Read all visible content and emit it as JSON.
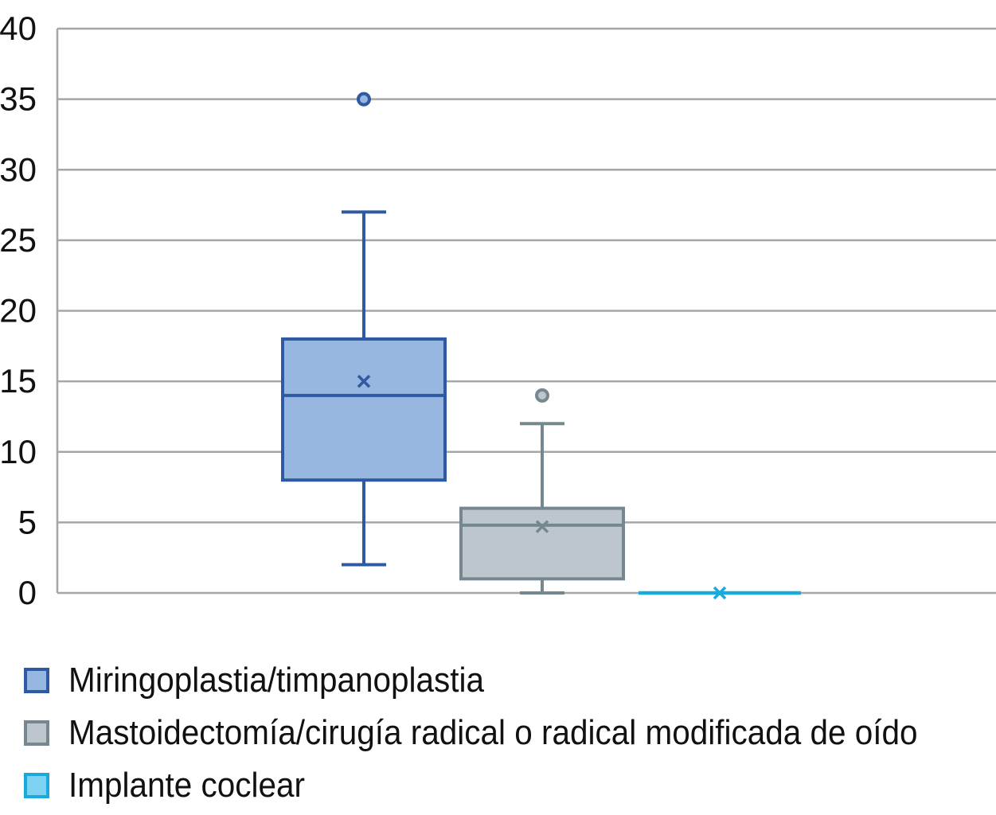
{
  "chart_data": {
    "type": "boxplot",
    "title": "",
    "xlabel": "",
    "ylabel": "",
    "ylim": [
      0,
      40
    ],
    "y_ticks": [
      "0",
      "5",
      "10",
      "15",
      "20",
      "25",
      "30",
      "35",
      "40"
    ],
    "grid": true,
    "legend_position": "bottom",
    "series": [
      {
        "name": "Miringoplastia/timpanoplastia",
        "min": 2,
        "q1": 8,
        "median": 14,
        "mean": 15,
        "q3": 18,
        "max": 27,
        "outliers": [
          35
        ],
        "fill": "#97b7e1",
        "stroke": "#2e5aa3"
      },
      {
        "name": "Mastoidectomía/cirugía radical o radical modificada de oído",
        "min": 0,
        "q1": 1,
        "median": 4.8,
        "mean": 4.7,
        "q3": 6,
        "max": 12,
        "outliers": [
          14
        ],
        "fill": "#bec6cd",
        "stroke": "#76888f"
      },
      {
        "name": "Implante coclear",
        "min": 0,
        "q1": 0,
        "median": 0,
        "mean": 0,
        "q3": 0,
        "max": 0,
        "outliers": [],
        "fill": "#7fd3f2",
        "stroke": "#1aa9dc"
      }
    ]
  }
}
